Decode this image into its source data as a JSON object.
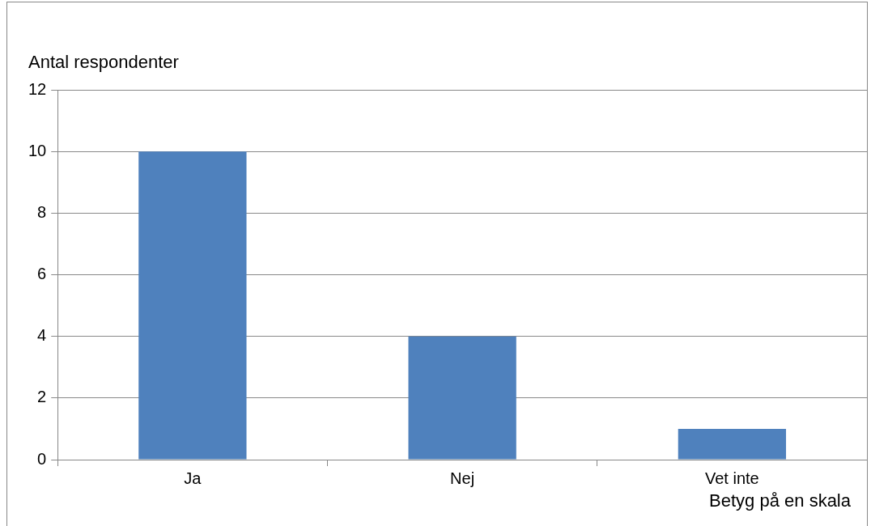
{
  "chart_data": {
    "type": "bar",
    "ylabel": "Antal respondenter",
    "xlabel": "Betyg på en skala",
    "categories": [
      "Ja",
      "Nej",
      "Vet inte"
    ],
    "values": [
      10,
      4,
      1
    ],
    "color": "#4f81bd",
    "ylim": [
      0,
      12
    ],
    "yticks": [
      0,
      2,
      4,
      6,
      8,
      10,
      12
    ],
    "grid": "y",
    "legend": false
  }
}
